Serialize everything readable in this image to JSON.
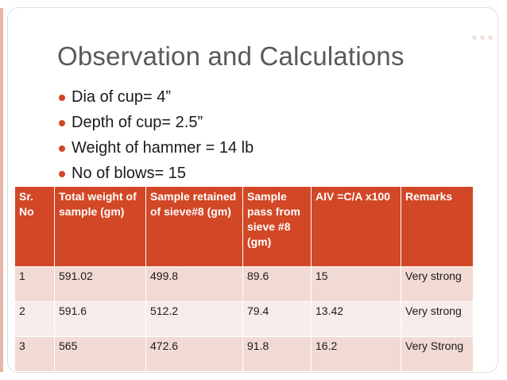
{
  "slide": {
    "title": "Observation and Calculations",
    "bullets": [
      "Dia of cup= 4”",
      "Depth of cup= 2.5”",
      "Weight of hammer = 14 lb",
      "No of blows= 15"
    ]
  },
  "table": {
    "headers": [
      "Sr. No",
      "Total weight of sample (gm)",
      "Sample retained of sieve#8 (gm)",
      "Sample pass from sieve #8 (gm)",
      "AIV =C/A x100",
      "Remarks"
    ],
    "rows": [
      [
        "1",
        "591.02",
        "499.8",
        "89.6",
        "15",
        "Very strong"
      ],
      [
        "2",
        "591.6",
        "512.2",
        "79.4",
        "13.42",
        "Very strong"
      ],
      [
        "3",
        "565",
        "472.6",
        "91.8",
        "16.2",
        "Very Strong"
      ]
    ]
  },
  "colors": {
    "accent": "#d24726",
    "row_odd": "#f2dad4",
    "row_even": "#f8ecea",
    "title": "#595959"
  }
}
